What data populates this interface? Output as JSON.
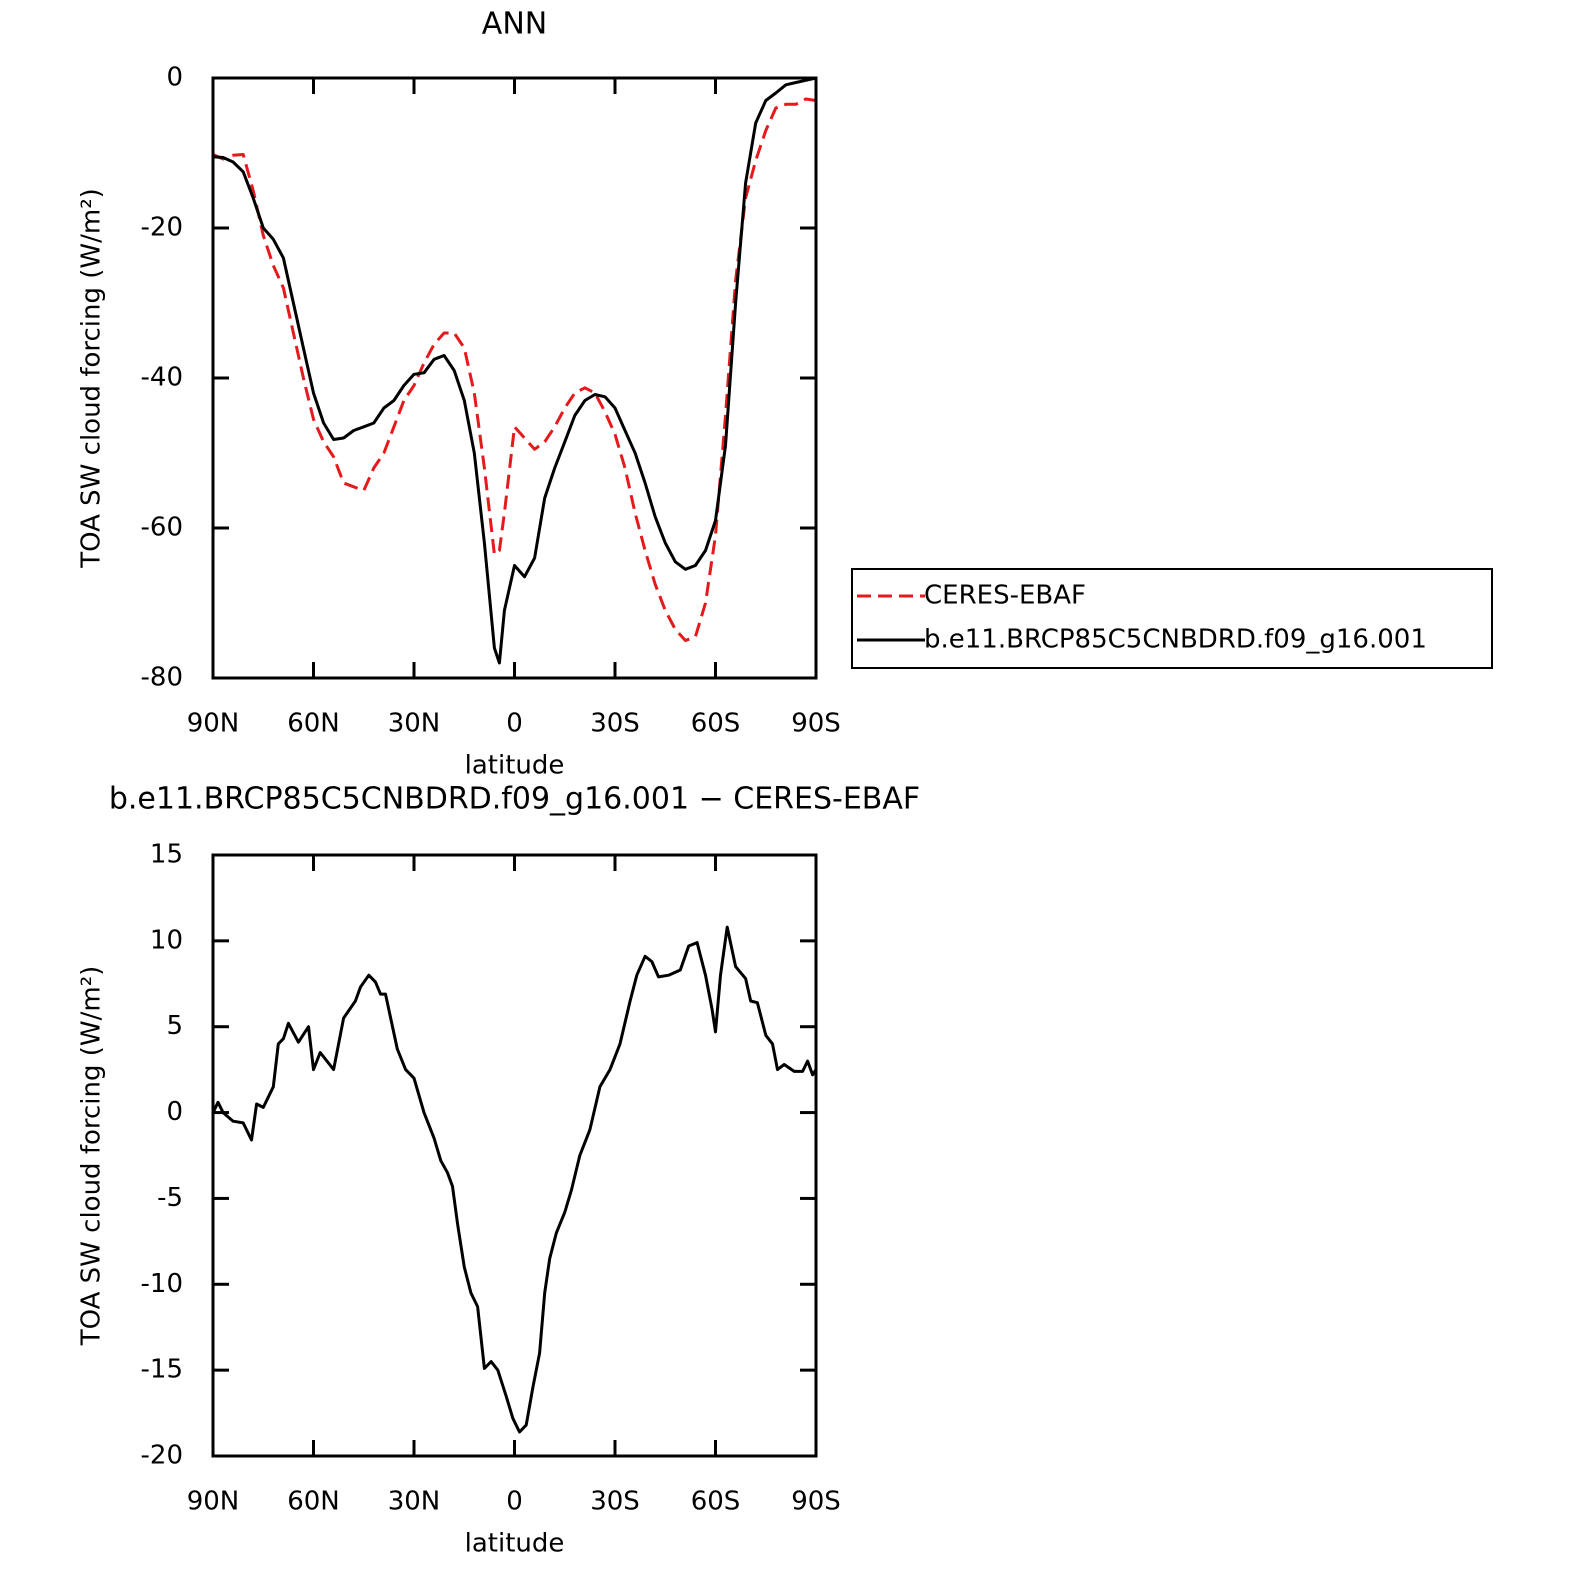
{
  "chart_data": [
    {
      "type": "line",
      "title": "ANN",
      "xlabel": "latitude",
      "ylabel": "TOA SW cloud forcing (W/m²)",
      "x": [
        90,
        87,
        84,
        81,
        78,
        75,
        72,
        69,
        66,
        63,
        60,
        57,
        54,
        51,
        48,
        45,
        42,
        39,
        36,
        33,
        30,
        27,
        24,
        21,
        18,
        15,
        12,
        9,
        6,
        4.5,
        3,
        0,
        -3,
        -6,
        -9,
        -12,
        -15,
        -18,
        -21,
        -24,
        -27,
        -30,
        -33,
        -36,
        -39,
        -42,
        -45,
        -48,
        -51,
        -54,
        -57,
        -60,
        -63,
        -66,
        -69,
        -72,
        -75,
        -78,
        -81,
        -84,
        -87,
        -90
      ],
      "series": [
        {
          "name": "CERES-EBAF",
          "color": "#e41a1c",
          "style": "dashed",
          "values": [
            -10.2,
            -10.8,
            -10.3,
            -10.2,
            -15,
            -21,
            -25,
            -28,
            -34,
            -40,
            -45.5,
            -48.5,
            -50.5,
            -54,
            -54.5,
            -55,
            -52,
            -50,
            -46.5,
            -43,
            -41,
            -38,
            -35.5,
            -34,
            -34,
            -36,
            -42,
            -52,
            -63.5,
            -63,
            -58,
            -46.5,
            -48,
            -49.5,
            -48.5,
            -46.5,
            -44,
            -42,
            -41.3,
            -42,
            -44.5,
            -47.5,
            -52,
            -58,
            -63,
            -67.5,
            -71,
            -73.5,
            -75,
            -74.5,
            -70,
            -61,
            -45,
            -27,
            -16,
            -11,
            -7,
            -4,
            -3.5,
            -3.5,
            -2.8,
            -3
          ]
        },
        {
          "name": "b.e11.BRCP85C5CNBDRD.f09_g16.001",
          "color": "#000000",
          "style": "solid",
          "values": [
            -10.5,
            -10.6,
            -11.2,
            -12.5,
            -16,
            -20,
            -21.5,
            -24,
            -30,
            -36,
            -42,
            -46,
            -48.2,
            -48,
            -47,
            -46.5,
            -46,
            -44,
            -43,
            -41,
            -39.5,
            -39.3,
            -37.5,
            -37,
            -39,
            -43,
            -50,
            -62,
            -76,
            -78,
            -71,
            -65,
            -66.5,
            -64,
            -56,
            -52,
            -48.5,
            -45,
            -43,
            -42.2,
            -42.5,
            -44,
            -47,
            -50,
            -54,
            -58.5,
            -62,
            -64.5,
            -65.5,
            -65,
            -63,
            -59,
            -49,
            -30,
            -14,
            -6,
            -3,
            -2,
            -0.9,
            -0.6,
            -0.3,
            0
          ]
        }
      ],
      "xlim": [
        90,
        -90
      ],
      "xticks": [
        {
          "value": 90,
          "label": "90N"
        },
        {
          "value": 60,
          "label": "60N"
        },
        {
          "value": 30,
          "label": "30N"
        },
        0,
        {
          "value": -30,
          "label": "30S"
        },
        {
          "value": -60,
          "label": "60S"
        },
        {
          "value": -90,
          "label": "90S"
        }
      ],
      "ylim": [
        -80,
        0
      ],
      "yticks": [
        0,
        -20,
        -40,
        -60,
        -80
      ],
      "grid": false,
      "legend": "right"
    },
    {
      "type": "line",
      "title": "b.e11.BRCP85C5CNBDRD.f09_g16.001 − CERES-EBAF",
      "xlabel": "latitude",
      "ylabel": "TOA SW cloud forcing (W/m²)",
      "x": [
        90,
        88.5,
        87,
        84,
        81,
        78.5,
        77,
        75,
        72,
        70.5,
        69,
        67.5,
        64.5,
        61.5,
        60,
        58,
        54,
        51,
        47.5,
        46,
        43.5,
        41.5,
        40,
        38.5,
        35,
        32.5,
        30,
        27,
        24,
        22,
        20,
        18.5,
        17,
        15,
        13,
        11,
        9,
        7,
        5,
        2.5,
        0.5,
        -1.5,
        -3.5,
        -5.5,
        -7.5,
        -9,
        -10.5,
        -12.5,
        -15,
        -17,
        -19.5,
        -22.5,
        -25.5,
        -28.5,
        -31.5,
        -34.5,
        -36.5,
        -39,
        -41,
        -43,
        -46,
        -49.5,
        -52,
        -54.5,
        -57,
        -59,
        -60,
        -61.5,
        -63.5,
        -66,
        -69,
        -70.5,
        -72.5,
        -75,
        -77,
        -78.5,
        -80.5,
        -83.5,
        -86,
        -87.5,
        -89,
        -90
      ],
      "values": [
        0,
        0.6,
        0,
        -0.5,
        -0.6,
        -1.6,
        0.5,
        0.3,
        1.5,
        4,
        4.3,
        5.2,
        4.1,
        5,
        2.5,
        3.5,
        2.5,
        5.5,
        6.5,
        7.3,
        8,
        7.6,
        6.9,
        6.9,
        3.7,
        2.5,
        2,
        0,
        -1.5,
        -2.8,
        -3.5,
        -4.3,
        -6.5,
        -9,
        -10.5,
        -11.3,
        -14.9,
        -14.5,
        -15,
        -16.5,
        -17.8,
        -18.6,
        -18.2,
        -16,
        -14,
        -10.5,
        -8.5,
        -7,
        -5.8,
        -4.5,
        -2.5,
        -1,
        1.5,
        2.5,
        4,
        6.5,
        8,
        9.1,
        8.8,
        7.9,
        8,
        8.3,
        9.7,
        9.9,
        8,
        6,
        4.7,
        8,
        10.8,
        8.5,
        7.8,
        6.5,
        6.4,
        4.5,
        4,
        2.5,
        2.8,
        2.4,
        2.4,
        3,
        2.2,
        2.5
      ],
      "color": "#000000",
      "xlim": [
        90,
        -90
      ],
      "xticks": [
        {
          "value": 90,
          "label": "90N"
        },
        {
          "value": 60,
          "label": "60N"
        },
        {
          "value": 30,
          "label": "30N"
        },
        0,
        {
          "value": -30,
          "label": "30S"
        },
        {
          "value": -60,
          "label": "60S"
        },
        {
          "value": -90,
          "label": "90S"
        }
      ],
      "ylim": [
        -20,
        15
      ],
      "yticks": [
        15,
        10,
        5,
        0,
        -5,
        -10,
        -15,
        -20
      ],
      "grid": false
    }
  ]
}
